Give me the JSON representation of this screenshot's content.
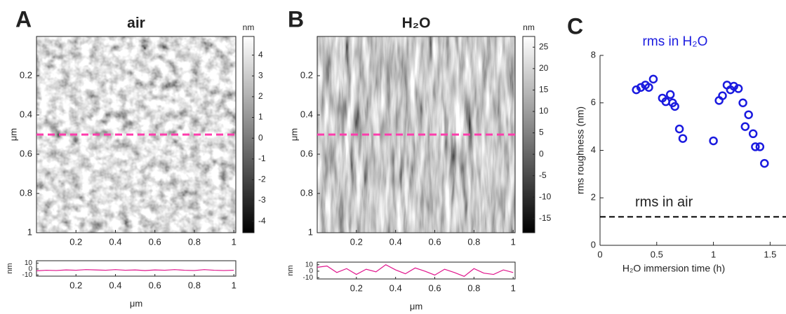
{
  "chart_data": [
    {
      "type": "image",
      "panel": "A",
      "title": "air",
      "ylabel": "μm",
      "xlim": [
        0,
        1.01
      ],
      "xticks": [
        0.2,
        0.4,
        0.6,
        0.8,
        1
      ],
      "ylim": [
        0,
        1
      ],
      "yticks": [
        0.2,
        0.4,
        0.6,
        0.8,
        1
      ],
      "cut_y": 0.5,
      "cut_color": "#ff3cac",
      "colorbar": {
        "label": "nm",
        "clim": [
          -4.55,
          4.9
        ],
        "ticks": [
          4,
          3,
          2,
          1,
          0,
          -1,
          -2,
          -3,
          -4
        ]
      }
    },
    {
      "type": "line",
      "ylabel": "nm",
      "xlabel": "μm",
      "color": "#e0148c",
      "xlim": [
        0,
        1.01
      ],
      "xticks": [
        0.2,
        0.4,
        0.6,
        0.8,
        1
      ],
      "ylim": [
        -12,
        14
      ],
      "yticks": [
        10,
        0,
        -10
      ],
      "x": [
        0,
        0.05,
        0.1,
        0.15,
        0.2,
        0.25,
        0.3,
        0.35,
        0.4,
        0.45,
        0.5,
        0.55,
        0.6,
        0.65,
        0.7,
        0.75,
        0.8,
        0.85,
        0.9,
        0.95,
        1
      ],
      "values": [
        -3,
        -2,
        -2.5,
        -1.5,
        -2,
        -1,
        -1.5,
        -2,
        -1,
        -2,
        -1.5,
        -2.5,
        -1.5,
        -2,
        -1,
        -2,
        -2.5,
        -1,
        -2,
        -2.5,
        -2
      ]
    },
    {
      "type": "image",
      "panel": "B",
      "title": "H₂O",
      "ylabel": "μm",
      "xlim": [
        0,
        1.01
      ],
      "xticks": [
        0.2,
        0.4,
        0.6,
        0.8,
        1
      ],
      "ylim": [
        0,
        1
      ],
      "yticks": [
        0.2,
        0.4,
        0.6,
        0.8,
        1
      ],
      "cut_y": 0.5,
      "cut_color": "#ff3cac",
      "colorbar": {
        "label": "nm",
        "clim": [
          -18.3,
          27.5
        ],
        "ticks": [
          25,
          20,
          15,
          10,
          5,
          0,
          -5,
          -10,
          -15
        ]
      }
    },
    {
      "type": "line",
      "ylabel": "nm",
      "xlabel": "μm",
      "color": "#e0148c",
      "xlim": [
        0,
        1.01
      ],
      "xticks": [
        0.2,
        0.4,
        0.6,
        0.8,
        1
      ],
      "ylim": [
        -12,
        14
      ],
      "yticks": [
        10,
        0,
        -10
      ],
      "x": [
        0,
        0.05,
        0.1,
        0.15,
        0.2,
        0.25,
        0.3,
        0.35,
        0.4,
        0.45,
        0.5,
        0.55,
        0.6,
        0.65,
        0.7,
        0.75,
        0.8,
        0.85,
        0.9,
        0.95,
        1
      ],
      "values": [
        6,
        8,
        -2,
        4,
        -5,
        3,
        -1,
        10,
        2,
        -4,
        5,
        0,
        -6,
        3,
        -2,
        -8,
        4,
        -3,
        -5,
        2,
        -2
      ]
    },
    {
      "type": "scatter",
      "panel": "C",
      "title": "rms in H₂O",
      "color": "#1a1adf",
      "xlabel": "H₂O immersion time (h)",
      "ylabel": "rms roughness (nm)",
      "xlim": [
        0,
        1.64
      ],
      "xticks": [
        0,
        0.5,
        1,
        1.5
      ],
      "ylim": [
        0,
        8
      ],
      "yticks": [
        0,
        2,
        4,
        6,
        8
      ],
      "hline": 1.2,
      "hline_label": "rms in air",
      "x": [
        0.32,
        0.36,
        0.4,
        0.43,
        0.47,
        0.55,
        0.58,
        0.62,
        0.64,
        0.66,
        0.7,
        0.73,
        1.0,
        1.05,
        1.08,
        1.12,
        1.15,
        1.18,
        1.22,
        1.26,
        1.28,
        1.31,
        1.35,
        1.37,
        1.41,
        1.45
      ],
      "values": [
        6.55,
        6.65,
        6.75,
        6.65,
        7.0,
        6.2,
        6.05,
        6.35,
        6.0,
        5.85,
        4.9,
        4.5,
        4.4,
        6.1,
        6.3,
        6.75,
        6.55,
        6.7,
        6.6,
        6.0,
        5.0,
        5.5,
        4.7,
        4.15,
        4.15,
        3.45
      ]
    }
  ]
}
